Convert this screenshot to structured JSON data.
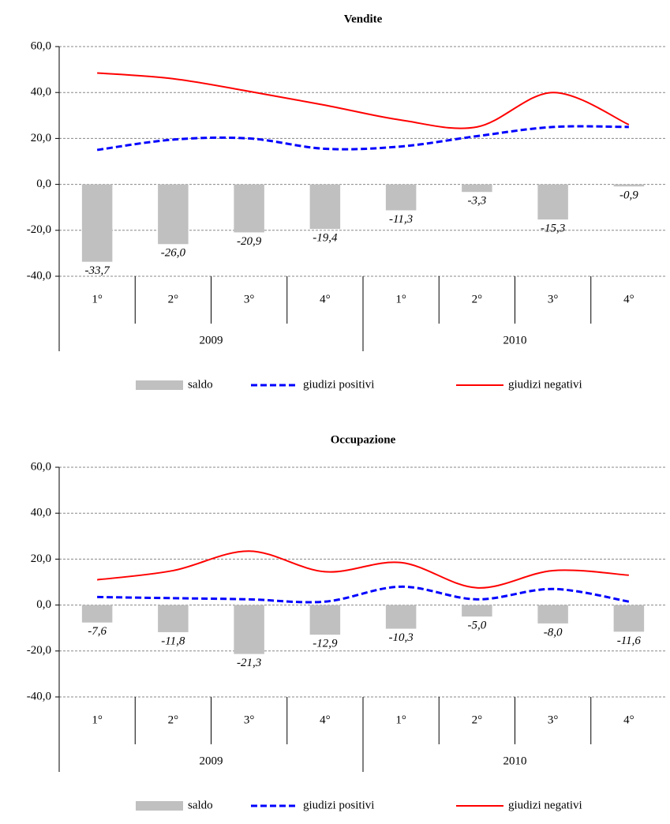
{
  "chart_data": [
    {
      "type": "bar",
      "title": "Vendite",
      "categories": [
        "1°",
        "2°",
        "3°",
        "4°",
        "1°",
        "2°",
        "3°",
        "4°"
      ],
      "group_labels": [
        "2009",
        "2010"
      ],
      "ylim": [
        -40,
        60
      ],
      "yticks": [
        {
          "value": -40,
          "label": "-40,0"
        },
        {
          "value": -20,
          "label": "-20,0"
        },
        {
          "value": 0,
          "label": "0,0"
        },
        {
          "value": 20,
          "label": "20,0"
        },
        {
          "value": 40,
          "label": "40,0"
        },
        {
          "value": 60,
          "label": "60,0"
        }
      ],
      "grid": true,
      "series": [
        {
          "name": "saldo",
          "type": "bar",
          "color": "#c0c0c0",
          "values": [
            -33.7,
            -26.0,
            -20.9,
            -19.4,
            -11.3,
            -3.3,
            -15.3,
            -0.9
          ],
          "value_labels": [
            "-33,7",
            "-26,0",
            "-20,9",
            "-19,4",
            "-11,3",
            "-3,3",
            "-15,3",
            "-0,9"
          ]
        },
        {
          "name": "giudizi positivi",
          "type": "line",
          "dashed": true,
          "color": "#0000ff",
          "values": [
            15,
            19.5,
            20,
            15.5,
            16.5,
            21,
            25,
            25
          ]
        },
        {
          "name": "giudizi negativi",
          "type": "line",
          "dashed": false,
          "color": "#ff0000",
          "values": [
            48.5,
            46,
            40.5,
            34.5,
            28,
            25,
            40,
            26
          ]
        }
      ]
    },
    {
      "type": "bar",
      "title": "Occupazione",
      "categories": [
        "1°",
        "2°",
        "3°",
        "4°",
        "1°",
        "2°",
        "3°",
        "4°"
      ],
      "group_labels": [
        "2009",
        "2010"
      ],
      "ylim": [
        -40,
        60
      ],
      "yticks": [
        {
          "value": -40,
          "label": "-40,0"
        },
        {
          "value": -20,
          "label": "-20,0"
        },
        {
          "value": 0,
          "label": "0,0"
        },
        {
          "value": 20,
          "label": "20,0"
        },
        {
          "value": 40,
          "label": "40,0"
        },
        {
          "value": 60,
          "label": "60,0"
        }
      ],
      "grid": true,
      "series": [
        {
          "name": "saldo",
          "type": "bar",
          "color": "#c0c0c0",
          "values": [
            -7.6,
            -11.8,
            -21.3,
            -12.9,
            -10.3,
            -5.0,
            -8.0,
            -11.6
          ],
          "value_labels": [
            "-7,6",
            "-11,8",
            "-21,3",
            "-12,9",
            "-10,3",
            "-5,0",
            "-8,0",
            "-11,6"
          ]
        },
        {
          "name": "giudizi positivi",
          "type": "line",
          "dashed": true,
          "color": "#0000ff",
          "values": [
            3.5,
            3,
            2.5,
            1.5,
            8,
            2.5,
            7,
            1.5
          ]
        },
        {
          "name": "giudizi negativi",
          "type": "line",
          "dashed": false,
          "color": "#ff0000",
          "values": [
            11,
            15,
            23.5,
            14.5,
            18.5,
            7.5,
            15,
            13
          ]
        }
      ]
    }
  ]
}
